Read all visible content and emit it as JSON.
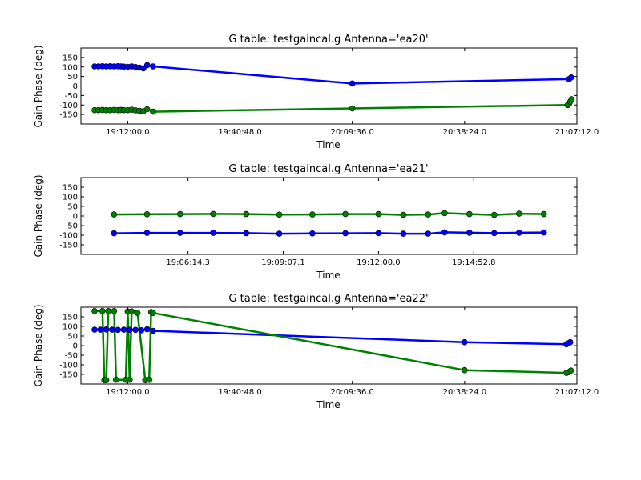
{
  "chart_data": [
    {
      "type": "line",
      "title": "G table: testgaincal.g      Antenna='ea20'",
      "xlabel": "Time",
      "ylabel": "Gain Phase (deg)",
      "x_ticks": [
        "19:12:00.0",
        "19:40:48.0",
        "20:09:36.0",
        "20:38:24.0",
        "21:07:12.0"
      ],
      "xlim": [
        "19:00:00",
        "21:07:12"
      ],
      "ylim": [
        -200,
        200
      ],
      "y_ticks": [
        -150,
        -100,
        -50,
        0,
        50,
        100,
        150
      ],
      "grid": false,
      "series": [
        {
          "color": "#0000ff",
          "x": [
            "19:03:30",
            "19:04:30",
            "19:05:30",
            "19:06:30",
            "19:07:30",
            "19:08:30",
            "19:09:30",
            "19:10:15",
            "19:11:00",
            "19:12:00",
            "19:13:00",
            "19:14:00",
            "19:15:00",
            "19:16:00",
            "19:17:00",
            "19:18:30",
            "20:09:36",
            "21:05:10",
            "21:05:45"
          ],
          "y": [
            103,
            103,
            104,
            103,
            104,
            103,
            104,
            103,
            102,
            101,
            103,
            100,
            97,
            93,
            110,
            103,
            13,
            36,
            45
          ]
        },
        {
          "color": "#008000",
          "x": [
            "19:03:30",
            "19:04:30",
            "19:05:30",
            "19:06:30",
            "19:07:30",
            "19:08:30",
            "19:09:30",
            "19:10:15",
            "19:11:00",
            "19:12:00",
            "19:13:00",
            "19:14:00",
            "19:15:00",
            "19:16:00",
            "19:17:00",
            "19:18:30",
            "20:09:36",
            "21:04:50",
            "21:05:10",
            "21:05:30",
            "21:05:50"
          ],
          "y": [
            -127,
            -127,
            -126,
            -127,
            -127,
            -126,
            -127,
            -126,
            -127,
            -127,
            -125,
            -128,
            -131,
            -133,
            -122,
            -135,
            -118,
            -100,
            -95,
            -82,
            -70
          ]
        }
      ]
    },
    {
      "type": "line",
      "title": "G table: testgaincal.g      Antenna='ea21'",
      "xlabel": "Time",
      "ylabel": "Gain Phase (deg)",
      "x_ticks": [
        "19:06:14.3",
        "19:09:07.1",
        "19:12:00.0",
        "19:14:52.8"
      ],
      "xlim": [
        "19:03:00",
        "19:18:00"
      ],
      "ylim": [
        -200,
        200
      ],
      "y_ticks": [
        -150,
        -100,
        -50,
        0,
        50,
        100,
        150
      ],
      "grid": false,
      "series": [
        {
          "color": "#0000ff",
          "x": [
            "19:04:00",
            "19:05:00",
            "19:06:00",
            "19:07:00",
            "19:08:00",
            "19:09:00",
            "19:10:00",
            "19:11:00",
            "19:12:00",
            "19:12:45",
            "19:13:30",
            "19:14:00",
            "19:14:45",
            "19:15:30",
            "19:16:15",
            "19:17:00"
          ],
          "y": [
            -90,
            -88,
            -88,
            -88,
            -89,
            -92,
            -91,
            -90,
            -89,
            -92,
            -92,
            -85,
            -87,
            -89,
            -87,
            -86
          ]
        },
        {
          "color": "#008000",
          "x": [
            "19:04:00",
            "19:05:00",
            "19:06:00",
            "19:07:00",
            "19:08:00",
            "19:09:00",
            "19:10:00",
            "19:11:00",
            "19:12:00",
            "19:12:45",
            "19:13:30",
            "19:14:00",
            "19:14:45",
            "19:15:30",
            "19:16:15",
            "19:17:00"
          ],
          "y": [
            8,
            9,
            10,
            11,
            10,
            7,
            8,
            10,
            10,
            6,
            8,
            15,
            10,
            6,
            12,
            10
          ]
        }
      ]
    },
    {
      "type": "line",
      "title": "G table: testgaincal.g      Antenna='ea22'",
      "xlabel": "Time",
      "ylabel": "Gain Phase (deg)",
      "x_ticks": [
        "19:12:00.0",
        "19:40:48.0",
        "20:09:36.0",
        "20:38:24.0",
        "21:07:12.0"
      ],
      "xlim": [
        "19:00:00",
        "21:07:12"
      ],
      "ylim": [
        -200,
        200
      ],
      "y_ticks": [
        -150,
        -100,
        -50,
        0,
        50,
        100,
        150
      ],
      "grid": false,
      "series": [
        {
          "color": "#0000ff",
          "x": [
            "19:03:30",
            "19:05:00",
            "19:06:30",
            "19:08:00",
            "19:09:30",
            "19:11:00",
            "19:12:30",
            "19:14:00",
            "19:15:30",
            "19:17:00",
            "19:18:30",
            "20:38:24",
            "21:04:30",
            "21:05:00",
            "21:05:30"
          ],
          "y": [
            83,
            83,
            84,
            83,
            82,
            83,
            82,
            82,
            80,
            85,
            77,
            18,
            7,
            12,
            18
          ]
        },
        {
          "color": "#008000",
          "x": [
            "19:03:30",
            "19:05:30",
            "19:06:00",
            "19:06:30",
            "19:07:00",
            "19:08:30",
            "19:09:00",
            "19:11:30",
            "19:12:00",
            "19:12:30",
            "19:13:00",
            "19:14:30",
            "19:16:30",
            "19:17:30",
            "19:18:00",
            "19:18:30",
            "20:38:24",
            "21:04:30",
            "21:05:10",
            "21:05:40"
          ],
          "y": [
            180,
            180,
            -180,
            -180,
            180,
            180,
            -178,
            -178,
            178,
            -178,
            178,
            170,
            -180,
            -178,
            175,
            170,
            -128,
            -142,
            -138,
            -130
          ]
        }
      ]
    }
  ]
}
